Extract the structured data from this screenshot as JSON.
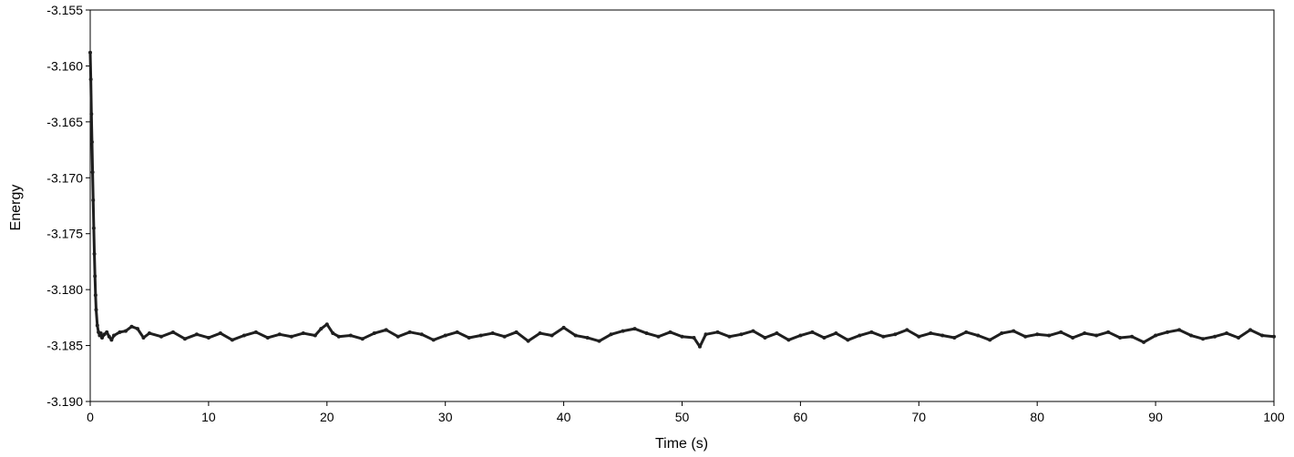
{
  "chart_data": {
    "type": "scatter",
    "title": "",
    "xlabel": "Time (s)",
    "ylabel": "Energy",
    "xlim": [
      0,
      100
    ],
    "ylim": [
      -3.19,
      -3.155
    ],
    "x_ticks": [
      0,
      10,
      20,
      30,
      40,
      50,
      60,
      70,
      80,
      90,
      100
    ],
    "x_tick_labels": [
      "0",
      "10",
      "20",
      "30",
      "40",
      "50",
      "60",
      "70",
      "80",
      "90",
      "100"
    ],
    "y_ticks": [
      -3.155,
      -3.16,
      -3.165,
      -3.17,
      -3.175,
      -3.18,
      -3.185,
      -3.19
    ],
    "y_tick_labels": [
      "-3.155",
      "-3.160",
      "-3.165",
      "-3.170",
      "-3.175",
      "-3.180",
      "-3.185",
      "-3.190"
    ],
    "grid": false,
    "legend": "none",
    "series": [
      {
        "color": "#1f1f1f",
        "marker": "dot",
        "x": [
          0.0,
          0.05,
          0.1,
          0.15,
          0.2,
          0.25,
          0.3,
          0.35,
          0.4,
          0.45,
          0.5,
          0.6,
          0.7,
          0.8,
          0.9,
          1.0,
          1.2,
          1.4,
          1.6,
          1.8,
          2.0,
          2.5,
          3.0,
          3.5,
          4.0,
          4.5,
          5.0,
          6.0,
          7.0,
          8.0,
          9.0,
          10.0,
          11.0,
          12.0,
          13.0,
          14.0,
          15.0,
          16.0,
          17.0,
          18.0,
          19.0,
          19.5,
          20.0,
          20.5,
          21.0,
          22.0,
          23.0,
          24.0,
          25.0,
          26.0,
          27.0,
          28.0,
          29.0,
          30.0,
          31.0,
          32.0,
          33.0,
          34.0,
          35.0,
          36.0,
          37.0,
          38.0,
          39.0,
          40.0,
          41.0,
          42.0,
          43.0,
          44.0,
          45.0,
          46.0,
          47.0,
          48.0,
          49.0,
          50.0,
          51.0,
          51.5,
          52.0,
          53.0,
          54.0,
          55.0,
          56.0,
          57.0,
          58.0,
          59.0,
          60.0,
          61.0,
          62.0,
          63.0,
          64.0,
          65.0,
          66.0,
          67.0,
          68.0,
          69.0,
          70.0,
          71.0,
          72.0,
          73.0,
          74.0,
          75.0,
          76.0,
          77.0,
          78.0,
          79.0,
          80.0,
          81.0,
          82.0,
          83.0,
          84.0,
          85.0,
          86.0,
          87.0,
          88.0,
          89.0,
          90.0,
          91.0,
          92.0,
          93.0,
          94.0,
          95.0,
          96.0,
          97.0,
          98.0,
          99.0,
          100.0
        ],
        "y": [
          -3.1588,
          -3.1612,
          -3.1643,
          -3.1668,
          -3.1695,
          -3.172,
          -3.1745,
          -3.1768,
          -3.1788,
          -3.1805,
          -3.1818,
          -3.1832,
          -3.1838,
          -3.1841,
          -3.1839,
          -3.1843,
          -3.184,
          -3.1838,
          -3.1842,
          -3.1845,
          -3.1841,
          -3.1838,
          -3.1837,
          -3.1833,
          -3.1835,
          -3.1843,
          -3.1839,
          -3.1842,
          -3.1838,
          -3.1844,
          -3.184,
          -3.1843,
          -3.1839,
          -3.1845,
          -3.1841,
          -3.1838,
          -3.1843,
          -3.184,
          -3.1842,
          -3.1839,
          -3.1841,
          -3.1835,
          -3.1831,
          -3.1839,
          -3.1842,
          -3.1841,
          -3.1844,
          -3.1839,
          -3.1836,
          -3.1842,
          -3.1838,
          -3.184,
          -3.1845,
          -3.1841,
          -3.1838,
          -3.1843,
          -3.1841,
          -3.1839,
          -3.1842,
          -3.1838,
          -3.1846,
          -3.1839,
          -3.1841,
          -3.1834,
          -3.1841,
          -3.1843,
          -3.1846,
          -3.184,
          -3.1837,
          -3.1835,
          -3.1839,
          -3.1842,
          -3.1838,
          -3.1842,
          -3.1843,
          -3.1851,
          -3.184,
          -3.1838,
          -3.1842,
          -3.184,
          -3.1837,
          -3.1843,
          -3.1839,
          -3.1845,
          -3.1841,
          -3.1838,
          -3.1843,
          -3.1839,
          -3.1845,
          -3.1841,
          -3.1838,
          -3.1842,
          -3.184,
          -3.1836,
          -3.1842,
          -3.1839,
          -3.1841,
          -3.1843,
          -3.1838,
          -3.1841,
          -3.1845,
          -3.1839,
          -3.1837,
          -3.1842,
          -3.184,
          -3.1841,
          -3.1838,
          -3.1843,
          -3.1839,
          -3.1841,
          -3.1838,
          -3.1843,
          -3.1842,
          -3.1847,
          -3.1841,
          -3.1838,
          -3.1836,
          -3.1841,
          -3.1844,
          -3.1842,
          -3.1839,
          -3.1843,
          -3.1836,
          -3.1841,
          -3.1842
        ]
      }
    ]
  }
}
